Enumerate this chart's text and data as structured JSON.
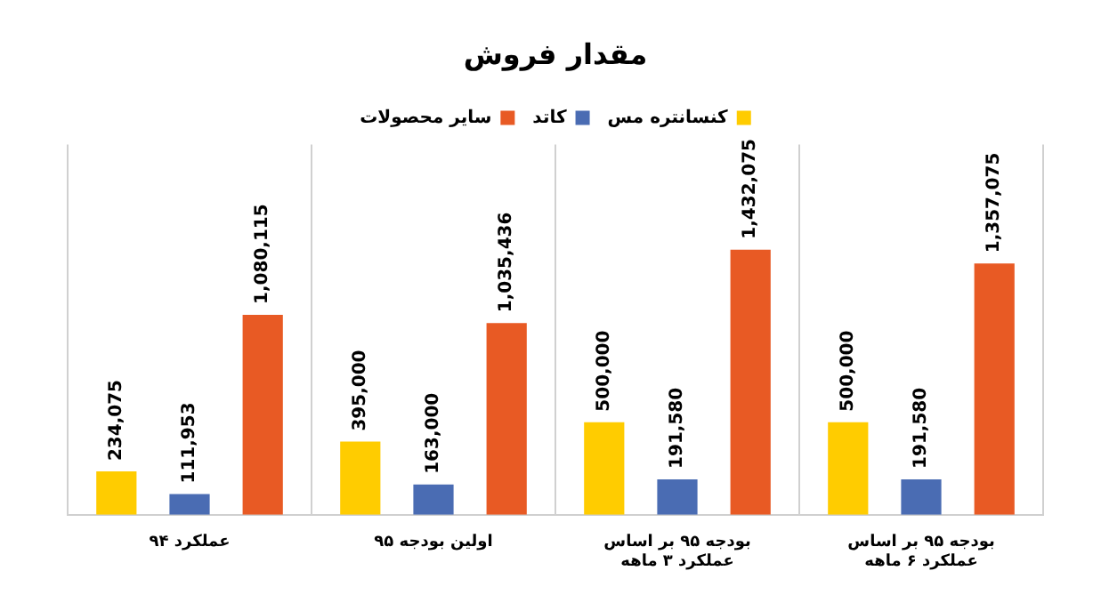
{
  "chart_data": {
    "type": "bar",
    "title": "مقدار فروش",
    "categories": [
      "عملکرد ۹۴",
      "اولین بودجه ۹۵",
      "بودجه ۹۵ بر اساس عملکرد ۳ ماهه",
      "بودجه ۹۵ بر اساس عملکرد ۶ ماهه"
    ],
    "series": [
      {
        "name": "کنسانتره مس",
        "color": "#ffcc00",
        "values": [
          234075,
          395000,
          500000,
          500000
        ],
        "value_labels": [
          "234,075",
          "395,000",
          "500,000",
          "500,000"
        ]
      },
      {
        "name": "کاتد",
        "color": "#4a6cb3",
        "values": [
          111953,
          163000,
          191580,
          191580
        ],
        "value_labels": [
          "111,953",
          "163,000",
          "191,580",
          "191,580"
        ]
      },
      {
        "name": "سایر محصولات",
        "color": "#e85a24",
        "values": [
          1080115,
          1035436,
          1432075,
          1357075
        ],
        "value_labels": [
          "1,080,115",
          "1,035,436",
          "1,432,075",
          "1,357,075"
        ]
      }
    ],
    "grid": "x",
    "legend": "top"
  }
}
